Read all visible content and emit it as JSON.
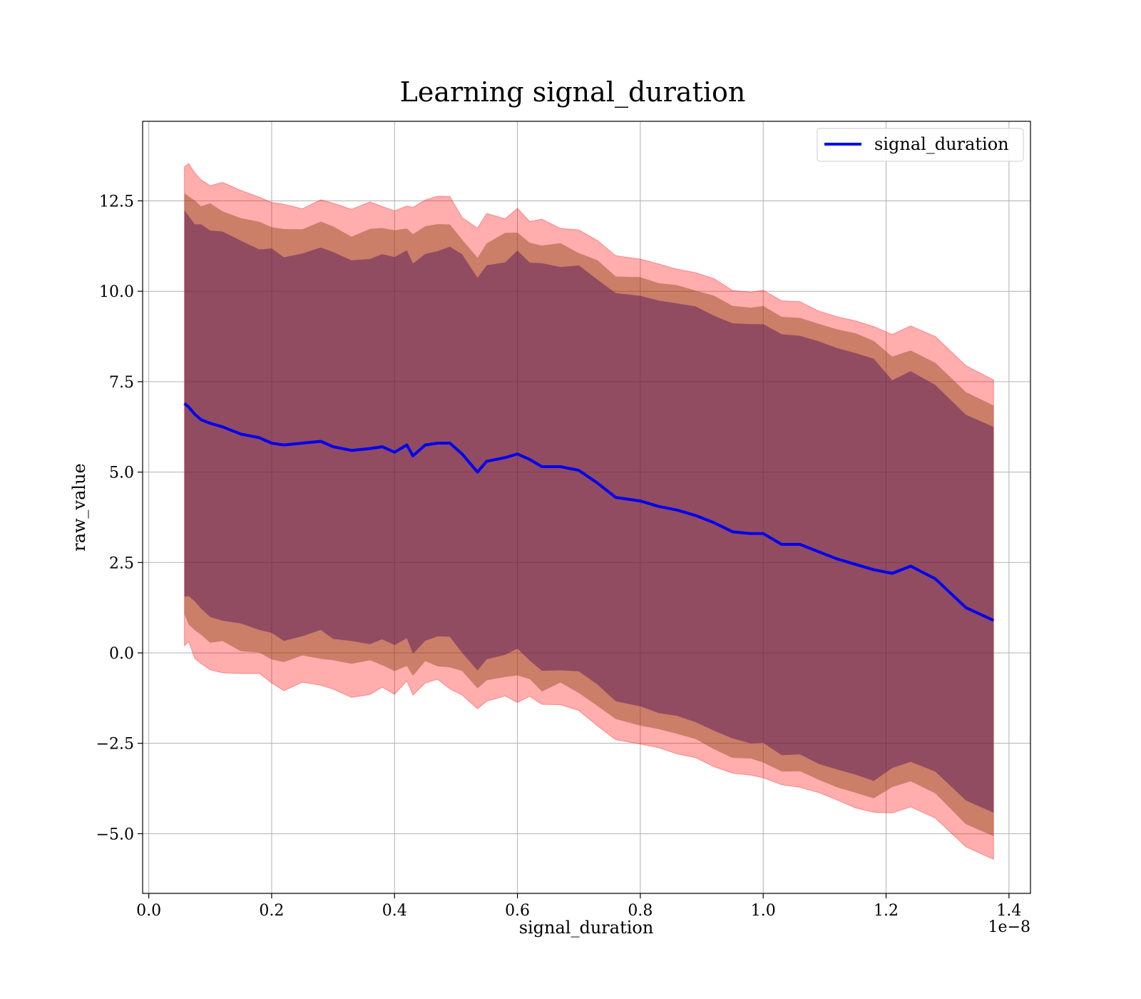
{
  "chart_data": {
    "type": "line",
    "title": "Learning signal_duration",
    "xlabel": "signal_duration",
    "ylabel": "raw_value",
    "x_offset_label": "1e−8",
    "xlim": [
      -0.01,
      1.435
    ],
    "ylim": [
      -6.65,
      14.7
    ],
    "x_ticks": [
      0.0,
      0.2,
      0.4,
      0.6,
      0.8,
      1.0,
      1.2,
      1.4
    ],
    "x_tick_labels": [
      "0.0",
      "0.2",
      "0.4",
      "0.6",
      "0.8",
      "1.0",
      "1.2",
      "1.4"
    ],
    "y_ticks": [
      -5.0,
      -2.5,
      0.0,
      2.5,
      5.0,
      7.5,
      10.0,
      12.5
    ],
    "y_tick_labels": [
      "−5.0",
      "−2.5",
      "0.0",
      "2.5",
      "5.0",
      "7.5",
      "10.0",
      "12.5"
    ],
    "grid": true,
    "legend": {
      "position": "top-right",
      "entries": [
        "signal_duration"
      ]
    },
    "colors": {
      "line": "#0000ee",
      "band_outer": "#ff0000",
      "band_middle": "#8b4513",
      "band_inner": "#4b0f5a",
      "grid": "#b0b0b0"
    },
    "series": [
      {
        "name": "signal_duration",
        "x": [
          0.058,
          0.065,
          0.075,
          0.085,
          0.1,
          0.12,
          0.15,
          0.18,
          0.2,
          0.22,
          0.25,
          0.28,
          0.3,
          0.33,
          0.36,
          0.38,
          0.4,
          0.42,
          0.43,
          0.45,
          0.47,
          0.49,
          0.51,
          0.535,
          0.55,
          0.58,
          0.6,
          0.62,
          0.64,
          0.67,
          0.7,
          0.73,
          0.76,
          0.8,
          0.83,
          0.86,
          0.89,
          0.92,
          0.95,
          0.98,
          1.0,
          1.03,
          1.06,
          1.09,
          1.12,
          1.15,
          1.18,
          1.21,
          1.24,
          1.28,
          1.33,
          1.375
        ],
        "y": [
          6.9,
          6.8,
          6.6,
          6.45,
          6.35,
          6.25,
          6.05,
          5.95,
          5.8,
          5.75,
          5.8,
          5.85,
          5.7,
          5.6,
          5.65,
          5.7,
          5.55,
          5.75,
          5.45,
          5.75,
          5.8,
          5.8,
          5.5,
          5.0,
          5.3,
          5.4,
          5.5,
          5.35,
          5.15,
          5.15,
          5.05,
          4.7,
          4.3,
          4.2,
          4.05,
          3.95,
          3.8,
          3.6,
          3.35,
          3.3,
          3.3,
          3.0,
          3.0,
          2.8,
          2.6,
          2.45,
          2.3,
          2.2,
          2.4,
          2.05,
          1.25,
          0.9
        ],
        "band_inner_halfwidth": [
          5.4,
          5.3,
          5.3,
          5.3,
          5.3,
          5.3,
          5.3,
          5.3,
          5.3,
          5.3,
          5.3,
          5.3,
          5.35,
          5.35,
          5.35,
          5.4,
          5.4,
          5.4,
          5.4,
          5.4,
          5.4,
          5.4,
          5.45,
          5.45,
          5.5,
          5.5,
          5.5,
          5.55,
          5.55,
          5.55,
          5.6,
          5.6,
          5.65,
          5.7,
          5.7,
          5.7,
          5.75,
          5.75,
          5.75,
          5.8,
          5.8,
          5.8,
          5.8,
          5.85,
          5.85,
          5.85,
          5.85,
          5.35,
          5.4,
          5.35,
          5.35,
          5.35
        ],
        "band_middle_halfwidth": [
          5.95,
          5.95,
          5.95,
          5.95,
          5.95,
          5.95,
          5.95,
          5.95,
          5.95,
          5.95,
          5.95,
          5.95,
          6.0,
          6.0,
          6.0,
          6.0,
          6.0,
          6.0,
          6.0,
          6.05,
          6.05,
          6.05,
          6.05,
          6.05,
          6.05,
          6.1,
          6.1,
          6.1,
          6.1,
          6.1,
          6.15,
          6.15,
          6.15,
          6.2,
          6.2,
          6.2,
          6.2,
          6.25,
          6.25,
          6.25,
          6.3,
          6.3,
          6.3,
          6.3,
          6.35,
          6.35,
          6.35,
          5.95,
          5.95,
          5.95,
          5.95,
          5.95
        ],
        "band_outer_halfwidth": [
          6.65,
          6.65,
          6.65,
          6.65,
          6.65,
          6.65,
          6.65,
          6.65,
          6.65,
          6.65,
          6.65,
          6.65,
          6.7,
          6.7,
          6.7,
          6.7,
          6.7,
          6.7,
          6.7,
          6.7,
          6.7,
          6.7,
          6.7,
          6.7,
          6.7,
          6.7,
          6.7,
          6.7,
          6.7,
          6.7,
          6.7,
          6.7,
          6.7,
          6.7,
          6.7,
          6.7,
          6.7,
          6.7,
          6.7,
          6.7,
          6.7,
          6.7,
          6.7,
          6.7,
          6.7,
          6.7,
          6.7,
          6.65,
          6.65,
          6.65,
          6.65,
          6.65
        ]
      }
    ]
  }
}
